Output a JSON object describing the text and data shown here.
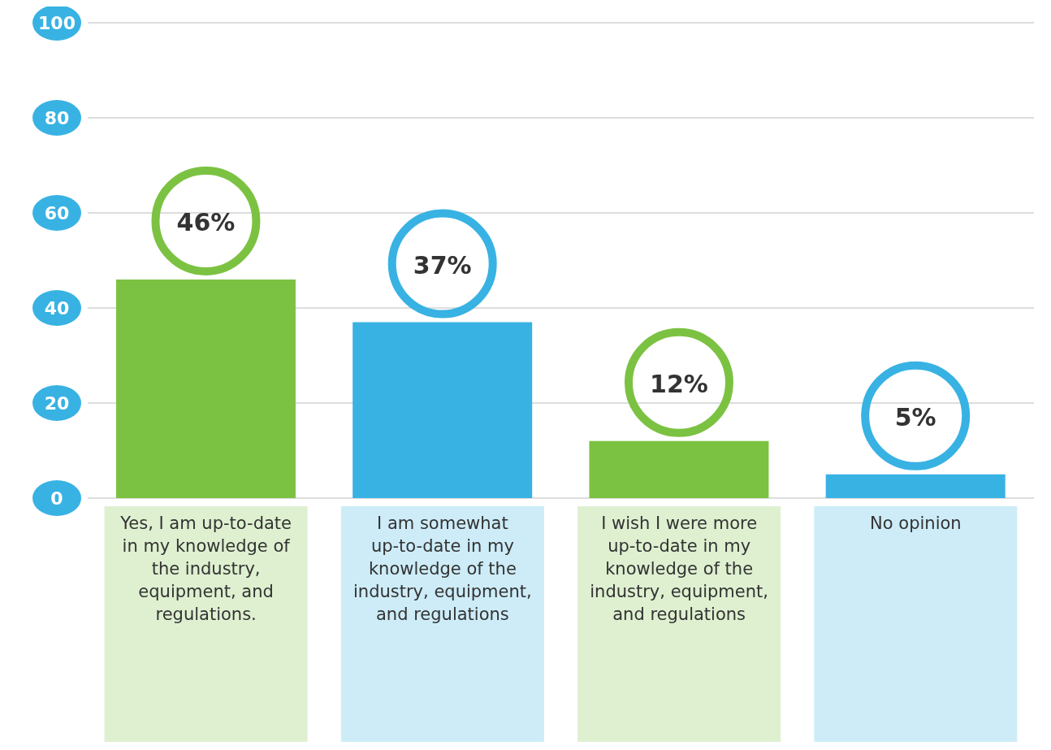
{
  "chart_data": {
    "type": "bar",
    "categories": [
      "Yes, I am up-to-date in my knowledge of the industry, equipment, and regulations.",
      "I am somewhat up-to-date in my knowledge of the industry, equipment, and regulations",
      "I wish I were more up-to-date in my knowledge of the industry, equipment, and regulations",
      "No opinion"
    ],
    "values": [
      46,
      37,
      12,
      5
    ],
    "colors": [
      "#7cc242",
      "#38b2e3",
      "#7cc242",
      "#38b2e3"
    ],
    "value_labels": [
      "46%",
      "37%",
      "12%",
      "5%"
    ],
    "ylim": [
      0,
      100
    ],
    "yticks": [
      0,
      20,
      40,
      60,
      80,
      100
    ],
    "grid": "y"
  }
}
